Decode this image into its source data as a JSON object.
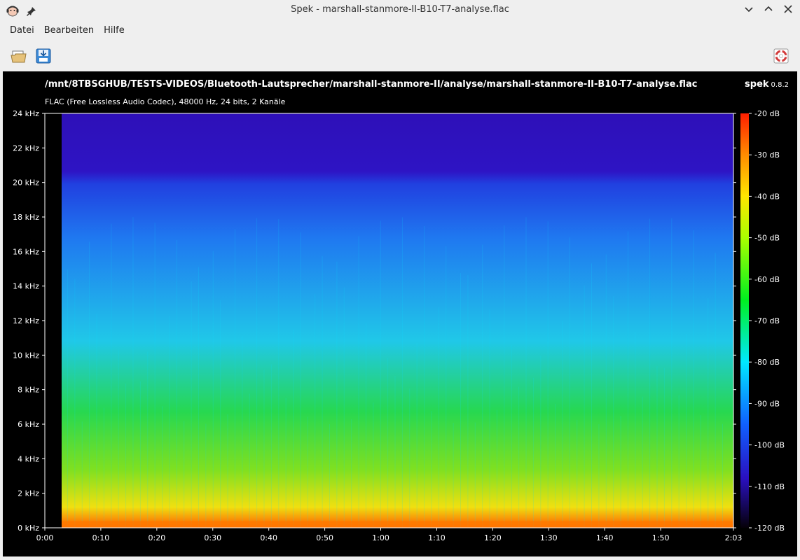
{
  "window": {
    "title": "Spek - marshall-stanmore-II-B10-T7-analyse.flac"
  },
  "menu": {
    "items": [
      "Datei",
      "Bearbeiten",
      "Hilfe"
    ]
  },
  "toolbar": {
    "open_icon": "folder-open-icon",
    "save_icon": "save-download-icon",
    "help_icon": "lifebuoy-help-icon"
  },
  "header": {
    "file_path": "/mnt/8TBSGHUB/TESTS-VIDEOS/Bluetooth-Lautsprecher/marshall-stanmore-II/analyse/marshall-stanmore-II-B10-T7-analyse.flac",
    "info": "FLAC (Free Lossless Audio Codec), 48000 Hz, 24 bits, 2 Kanäle",
    "app_name": "spek",
    "app_version": "0.8.2"
  },
  "chart_data": {
    "type": "heatmap",
    "x_range_seconds": [
      0,
      123
    ],
    "y_range_khz": [
      0,
      24
    ],
    "z_range_db": [
      -120,
      -20
    ],
    "x_ticks": [
      "0:00",
      "0:10",
      "0:20",
      "0:30",
      "0:40",
      "0:50",
      "1:00",
      "1:10",
      "1:20",
      "1:30",
      "1:40",
      "1:50",
      "2:03"
    ],
    "y_ticks": [
      "0 kHz",
      "2 kHz",
      "4 kHz",
      "6 kHz",
      "8 kHz",
      "10 kHz",
      "12 kHz",
      "14 kHz",
      "16 kHz",
      "18 kHz",
      "20 kHz",
      "22 kHz",
      "24 kHz"
    ],
    "legend_ticks": [
      "-20 dB",
      "-30 dB",
      "-40 dB",
      "-50 dB",
      "-60 dB",
      "-70 dB",
      "-80 dB",
      "-90 dB",
      "-100 dB",
      "-110 dB",
      "-120 dB"
    ],
    "signal_start_seconds": 3,
    "legend_placement": "right"
  },
  "colors": {
    "panel_bg": "#000000",
    "spectrum_low": "#2a18d8",
    "spectrum_mid": "#19d7ff",
    "spectrum_high": "#ffe600"
  }
}
